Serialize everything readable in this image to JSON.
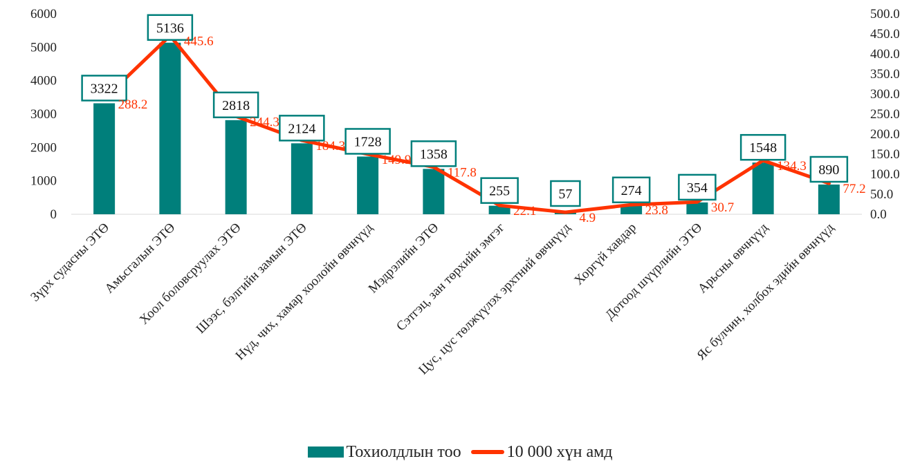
{
  "chart_data": {
    "type": "bar+line",
    "categories": [
      "Зүрх судасны ЭТӨ",
      "Амьсгалын ЭТӨ",
      "Хоол боловсруулах ЭТӨ",
      "Шээс, бэлгийн замын ЭТӨ",
      "Нүд, чих, хамар хоолойн өвчнүүд",
      "Мэдрэлийн ЭТӨ",
      "Сэтгэц, зан төрхийн эмгэг",
      "Цус, цус төлжүүлэх эрхтний өвчнүүд",
      "Хоргүй хавдар",
      "Дотоод шүүрлийн ЭТӨ",
      "Арьсны өвчнүүд",
      "Яс булчин, холбох эдийн өвчнүүд"
    ],
    "series": [
      {
        "name": "Тохиолдлын тоо",
        "type": "bar",
        "axis": "left",
        "color": "#007f7b",
        "values": [
          3322,
          5136,
          2818,
          2124,
          1728,
          1358,
          255,
          57,
          274,
          354,
          1548,
          890
        ],
        "labels": [
          "3322",
          "5136",
          "2818",
          "2124",
          "1728",
          "1358",
          "255",
          "57",
          "274",
          "354",
          "1548",
          "890"
        ]
      },
      {
        "name": "10 000 хүн амд",
        "type": "line",
        "axis": "right",
        "color": "#ff3300",
        "values": [
          288.2,
          445.6,
          244.3,
          184.3,
          149.9,
          117.8,
          22.1,
          4.9,
          23.8,
          30.7,
          134.3,
          77.2
        ],
        "labels": [
          "288.2",
          "445.6",
          "244.3",
          "184.3",
          "149.9",
          "117.8",
          "22.1",
          "4.9",
          "23.8",
          "30.7",
          "134.3",
          "77.2"
        ]
      }
    ],
    "y_left": {
      "min": 0,
      "max": 6000,
      "ticks": [
        "0",
        "1000",
        "2000",
        "3000",
        "4000",
        "5000",
        "6000"
      ]
    },
    "y_right": {
      "min": 0,
      "max": 500,
      "ticks": [
        "0.0",
        "50.0",
        "100.0",
        "150.0",
        "200.0",
        "250.0",
        "300.0",
        "350.0",
        "400.0",
        "450.0",
        "500.0"
      ]
    },
    "grid": false,
    "legend_position": "bottom"
  },
  "legend": {
    "bar_label": "Тохиолдлын тоо",
    "line_label": "10 000 хүн амд",
    "bar_color": "#007f7b",
    "line_color": "#ff3300"
  }
}
